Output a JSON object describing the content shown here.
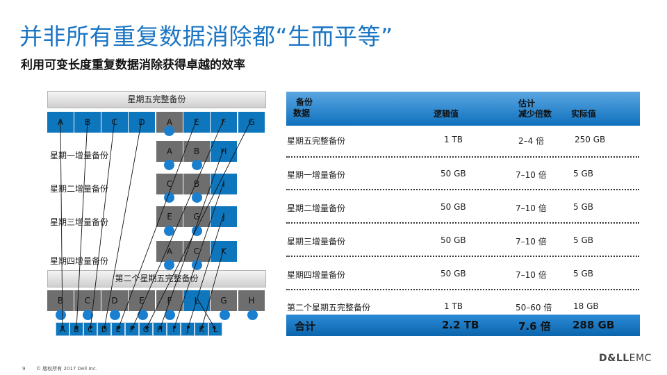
{
  "title": "并非所有重复数据消除都“生而平等”",
  "subtitle": "利用可变长度重复数据消除获得卓越的效率",
  "diagram": {
    "friday_full_label": "星期五完整备份",
    "friday_blocks": [
      "A",
      "B",
      "C",
      "D",
      "A",
      "E",
      "F",
      "G"
    ],
    "monday_label": "星期一增量备份",
    "monday_blocks": [
      "A",
      "B",
      "H"
    ],
    "tuesday_label": "星期二增量备份",
    "tuesday_blocks": [
      "C",
      "B",
      "I"
    ],
    "wednesday_label": "星期三增量备份",
    "wednesday_blocks": [
      "E",
      "G",
      "J"
    ],
    "thursday_label": "星期四增量备份",
    "thursday_blocks": [
      "A",
      "C",
      "K"
    ],
    "second_friday_label": "第二个星期五完整备份",
    "second_friday_blocks": [
      "B",
      "C",
      "D",
      "E",
      "F",
      "L",
      "G",
      "H"
    ],
    "store_blocks": [
      "A",
      "B",
      "C",
      "D",
      "E",
      "F",
      "G",
      "H",
      "I",
      "J",
      "K",
      "L"
    ]
  },
  "table": {
    "header": {
      "backup": "备份",
      "data": "数据",
      "logical": "逻辑值",
      "estimate": "估计",
      "reduction": "减少倍数",
      "actual": "实际值"
    },
    "rows": [
      {
        "name": "星期五完整备份",
        "logical": "1 TB",
        "reduction": "2–4 倍",
        "actual": "250 GB"
      },
      {
        "name": "星期一增量备份",
        "logical": "50 GB",
        "reduction": "7–10 倍",
        "actual": "5 GB"
      },
      {
        "name": "星期二增量备份",
        "logical": "50 GB",
        "reduction": "7–10 倍",
        "actual": "5 GB"
      },
      {
        "name": "星期三增量备份",
        "logical": "50 GB",
        "reduction": "7–10 倍",
        "actual": "5 GB"
      },
      {
        "name": "星期四增量备份",
        "logical": "50 GB",
        "reduction": "7–10 倍",
        "actual": "5 GB"
      },
      {
        "name": "第二个星期五完整备份",
        "logical": "1 TB",
        "reduction": "50–60 倍",
        "actual": "18 GB"
      }
    ],
    "total": {
      "label": "合计",
      "logical": "2.2 TB",
      "reduction": "7.6 倍",
      "actual": "288 GB"
    }
  },
  "footer": {
    "page": "9",
    "copyright": "© 版权所有 2017 Dell Inc."
  },
  "logo": {
    "bold": "D&LL",
    "light": "EMC"
  },
  "colors": {
    "accent": "#1a75c4",
    "block_blue": "#0d76bd",
    "block_gray": "#6e6e6e",
    "dot": "#1a7fcf"
  }
}
